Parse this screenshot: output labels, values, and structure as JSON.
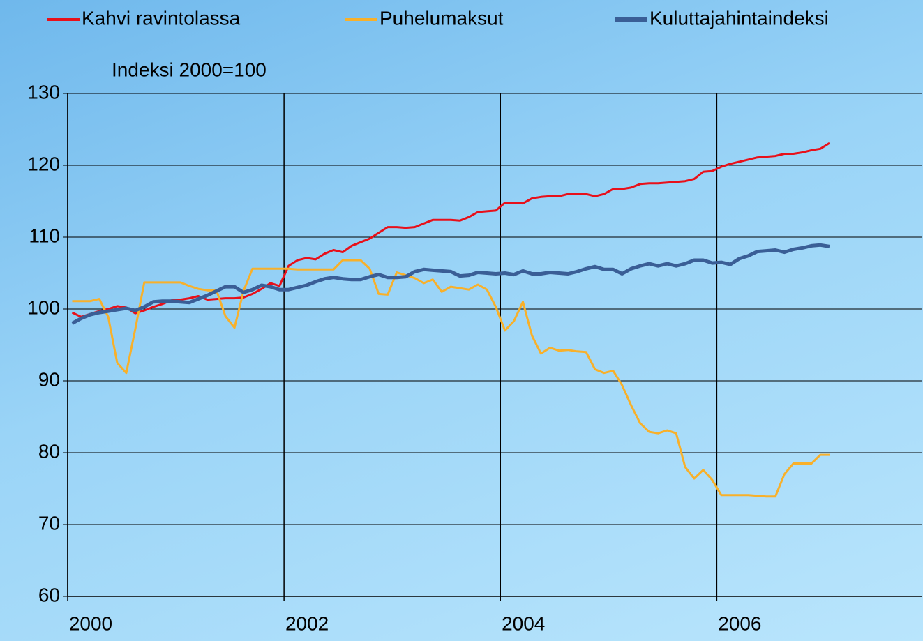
{
  "chart_data": {
    "type": "line",
    "subtitle": "Indeksi 2000=100",
    "x": [
      2000.042,
      2000.125,
      2000.208,
      2000.292,
      2000.375,
      2000.458,
      2000.542,
      2000.625,
      2000.708,
      2000.792,
      2000.875,
      2000.958,
      2001.042,
      2001.125,
      2001.208,
      2001.292,
      2001.375,
      2001.458,
      2001.542,
      2001.625,
      2001.708,
      2001.792,
      2001.875,
      2001.958,
      2002.042,
      2002.125,
      2002.208,
      2002.292,
      2002.375,
      2002.458,
      2002.542,
      2002.625,
      2002.708,
      2002.792,
      2002.875,
      2002.958,
      2003.042,
      2003.125,
      2003.208,
      2003.292,
      2003.375,
      2003.458,
      2003.542,
      2003.625,
      2003.708,
      2003.792,
      2003.875,
      2003.958,
      2004.042,
      2004.125,
      2004.208,
      2004.292,
      2004.375,
      2004.458,
      2004.542,
      2004.625,
      2004.708,
      2004.792,
      2004.875,
      2004.958,
      2005.042,
      2005.125,
      2005.208,
      2005.292,
      2005.375,
      2005.458,
      2005.542,
      2005.625,
      2005.708,
      2005.792,
      2005.875,
      2005.958,
      2006.042,
      2006.125,
      2006.208,
      2006.292,
      2006.375,
      2006.458,
      2006.542,
      2006.625,
      2006.708,
      2006.792,
      2006.875,
      2006.958,
      2007.042
    ],
    "series": [
      {
        "name": "Kahvi ravintolassa",
        "color": "#e8101a",
        "width": 3,
        "values": [
          99.5,
          98.9,
          99.3,
          99.7,
          100.0,
          100.4,
          100.2,
          99.4,
          99.8,
          100.3,
          100.7,
          101.2,
          101.3,
          101.5,
          101.8,
          101.3,
          101.4,
          101.5,
          101.5,
          101.6,
          102.1,
          102.8,
          103.6,
          103.2,
          106.0,
          106.8,
          107.1,
          106.9,
          107.7,
          108.2,
          107.9,
          108.8,
          109.3,
          109.8,
          110.6,
          111.4,
          111.4,
          111.3,
          111.4,
          111.9,
          112.4,
          112.4,
          112.4,
          112.3,
          112.8,
          113.5,
          113.6,
          113.7,
          114.8,
          114.8,
          114.7,
          115.4,
          115.6,
          115.7,
          115.7,
          116.0,
          116.0,
          116.0,
          115.7,
          116.0,
          116.7,
          116.7,
          116.9,
          117.4,
          117.5,
          117.5,
          117.6,
          117.7,
          117.8,
          118.1,
          119.1,
          119.2,
          119.8,
          120.2,
          120.5,
          120.8,
          121.1,
          121.2,
          121.3,
          121.6,
          121.6,
          121.8,
          122.1,
          122.3,
          123.1
        ]
      },
      {
        "name": "Puhelumaksut",
        "color": "#f8b02a",
        "width": 3,
        "values": [
          101.1,
          101.1,
          101.1,
          101.4,
          98.9,
          92.5,
          91.1,
          97.2,
          103.7,
          103.7,
          103.7,
          103.7,
          103.7,
          103.2,
          102.8,
          102.6,
          102.6,
          99.0,
          97.4,
          102.5,
          105.6,
          105.6,
          105.6,
          105.6,
          105.6,
          105.5,
          105.5,
          105.5,
          105.5,
          105.5,
          106.8,
          106.8,
          106.8,
          105.6,
          102.1,
          102.0,
          105.1,
          104.7,
          104.3,
          103.6,
          104.1,
          102.4,
          103.1,
          102.9,
          102.7,
          103.4,
          102.7,
          100.3,
          97.0,
          98.3,
          101.0,
          96.3,
          93.8,
          94.6,
          94.2,
          94.3,
          94.1,
          94.0,
          91.6,
          91.1,
          91.4,
          89.4,
          86.6,
          84.1,
          82.9,
          82.7,
          83.1,
          82.7,
          78.0,
          76.4,
          77.6,
          76.2,
          74.1,
          74.1,
          74.1,
          74.1,
          74.0,
          73.9,
          73.9,
          77.0,
          78.5,
          78.5,
          78.5,
          79.7,
          79.7
        ]
      },
      {
        "name": "Kuluttajahintaindeksi",
        "color": "#3a5e96",
        "width": 5,
        "values": [
          98.0,
          98.7,
          99.2,
          99.5,
          99.7,
          99.9,
          100.1,
          99.8,
          100.3,
          101.0,
          101.1,
          101.1,
          101.0,
          100.9,
          101.4,
          101.9,
          102.5,
          103.1,
          103.1,
          102.3,
          102.7,
          103.3,
          103.1,
          102.7,
          102.7,
          103.0,
          103.3,
          103.8,
          104.2,
          104.4,
          104.2,
          104.1,
          104.1,
          104.5,
          104.8,
          104.4,
          104.4,
          104.5,
          105.2,
          105.5,
          105.4,
          105.3,
          105.2,
          104.6,
          104.7,
          105.1,
          105.0,
          104.9,
          105.0,
          104.8,
          105.3,
          104.9,
          104.9,
          105.1,
          105.0,
          104.9,
          105.2,
          105.6,
          105.9,
          105.5,
          105.5,
          104.9,
          105.6,
          106.0,
          106.3,
          106.0,
          106.3,
          106.0,
          106.3,
          106.8,
          106.8,
          106.4,
          106.5,
          106.2,
          107.0,
          107.4,
          108.0,
          108.1,
          108.2,
          107.9,
          108.3,
          108.5,
          108.8,
          108.9,
          108.7
        ]
      }
    ],
    "xlim": [
      2000,
      2007.9
    ],
    "xticks": [
      2000,
      2002,
      2004,
      2006
    ],
    "ylim": [
      60,
      130
    ],
    "yticks": [
      60,
      70,
      80,
      90,
      100,
      110,
      120,
      130
    ],
    "grid": true,
    "legend": "top"
  }
}
